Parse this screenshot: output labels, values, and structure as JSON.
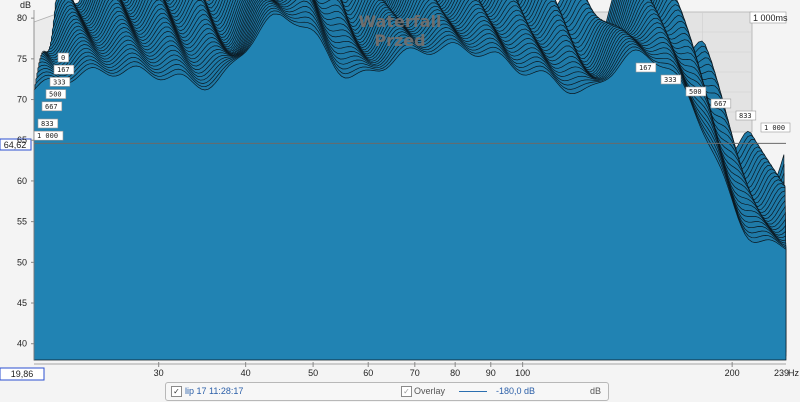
{
  "chart_data": {
    "type": "area",
    "title": "Waterfall",
    "subtitle": "Przed",
    "y_unit": "dB",
    "x_unit": "Hz",
    "x_scale": "log",
    "xlim": [
      19.86,
      239
    ],
    "ylim": [
      38,
      81
    ],
    "x_ticks": [
      {
        "v": 30,
        "label": "30"
      },
      {
        "v": 40,
        "label": "40"
      },
      {
        "v": 50,
        "label": "50"
      },
      {
        "v": 60,
        "label": "60"
      },
      {
        "v": 70,
        "label": "70"
      },
      {
        "v": 80,
        "label": "80"
      },
      {
        "v": 90,
        "label": "90"
      },
      {
        "v": 100,
        "label": "100"
      },
      {
        "v": 200,
        "label": "200"
      }
    ],
    "x_min_label": "19,86",
    "x_max_label": "239",
    "y_ticks": [
      {
        "v": 40,
        "label": "40"
      },
      {
        "v": 45,
        "label": "45"
      },
      {
        "v": 50,
        "label": "50"
      },
      {
        "v": 55,
        "label": "55"
      },
      {
        "v": 60,
        "label": "60"
      },
      {
        "v": 65,
        "label": "65"
      },
      {
        "v": 70,
        "label": "70"
      },
      {
        "v": 75,
        "label": "75"
      },
      {
        "v": 80,
        "label": "80"
      }
    ],
    "cursor_value": 64.62,
    "cursor_label": "64,62",
    "time_axis_unit": "ms",
    "time_labels_left": [
      "0",
      "167",
      "333",
      "500",
      "667",
      "833",
      "1 000"
    ],
    "time_labels_right": [
      "167",
      "333",
      "500",
      "667",
      "833",
      "1 000"
    ],
    "time_label_top": "1 000ms",
    "slice_count": 30,
    "peaks": [
      {
        "f": 26.5,
        "db": 73.5,
        "w": 0.28
      },
      {
        "f": 45.5,
        "db": 80.0,
        "w": 0.09
      },
      {
        "f": 58.0,
        "db": 70.5,
        "w": 0.09
      },
      {
        "f": 67.0,
        "db": 73.0,
        "w": 0.08
      },
      {
        "f": 78.0,
        "db": 75.5,
        "w": 0.1
      },
      {
        "f": 92.0,
        "db": 73.5,
        "w": 0.09
      },
      {
        "f": 110.0,
        "db": 71.5,
        "w": 0.08
      },
      {
        "f": 148.0,
        "db": 75.5,
        "w": 0.1
      }
    ]
  },
  "legend": {
    "series_label": "lip 17 11:28:17",
    "series_value": "-180,0 dB",
    "overlay_label": "Overlay",
    "unit_label": "dB"
  },
  "colors": {
    "fill": "#1f7aa8",
    "stroke": "#0b1820",
    "front_fill": "#2183b3",
    "cursor": "#2b4fd0",
    "legend_text": "#2b5fa8"
  }
}
